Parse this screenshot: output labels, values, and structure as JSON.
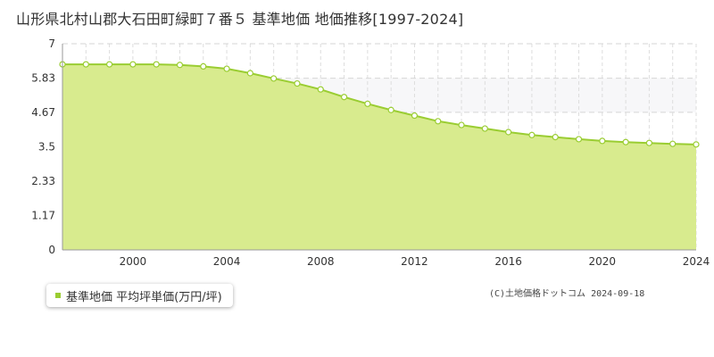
{
  "chart_data": {
    "type": "area",
    "title": "山形県北村山郡大石田町緑町７番５ 基準地価 地価推移[1997-2024]",
    "x": [
      1997,
      1998,
      1999,
      2000,
      2001,
      2002,
      2003,
      2004,
      2005,
      2006,
      2007,
      2008,
      2009,
      2010,
      2011,
      2012,
      2013,
      2014,
      2015,
      2016,
      2017,
      2018,
      2019,
      2020,
      2021,
      2022,
      2023,
      2024
    ],
    "series": [
      {
        "name": "基準地価 平均坪単価(万円/坪)",
        "color": "#9acd32",
        "fill": "#d8eb8e",
        "values": [
          6.3,
          6.3,
          6.3,
          6.3,
          6.3,
          6.28,
          6.23,
          6.15,
          6.0,
          5.82,
          5.65,
          5.45,
          5.19,
          4.96,
          4.75,
          4.56,
          4.37,
          4.24,
          4.12,
          4.0,
          3.9,
          3.83,
          3.76,
          3.7,
          3.66,
          3.63,
          3.6,
          3.58
        ]
      }
    ],
    "y_ticks": [
      "7",
      "5.83",
      "4.67",
      "3.5",
      "2.33",
      "1.17",
      "0"
    ],
    "y_tick_values": [
      7,
      5.83,
      4.67,
      3.5,
      2.33,
      1.17,
      0
    ],
    "x_ticks": [
      "2000",
      "2004",
      "2008",
      "2012",
      "2016",
      "2020",
      "2024"
    ],
    "x_tick_values": [
      2000,
      2004,
      2008,
      2012,
      2016,
      2020,
      2024
    ],
    "xlim": [
      1997,
      2024
    ],
    "ylim": [
      0,
      7
    ],
    "grid": true,
    "legend": "bottom-left"
  },
  "legend_label": "基準地価 平均坪単価(万円/坪)",
  "credit": "(C)土地価格ドットコム 2024-09-18"
}
